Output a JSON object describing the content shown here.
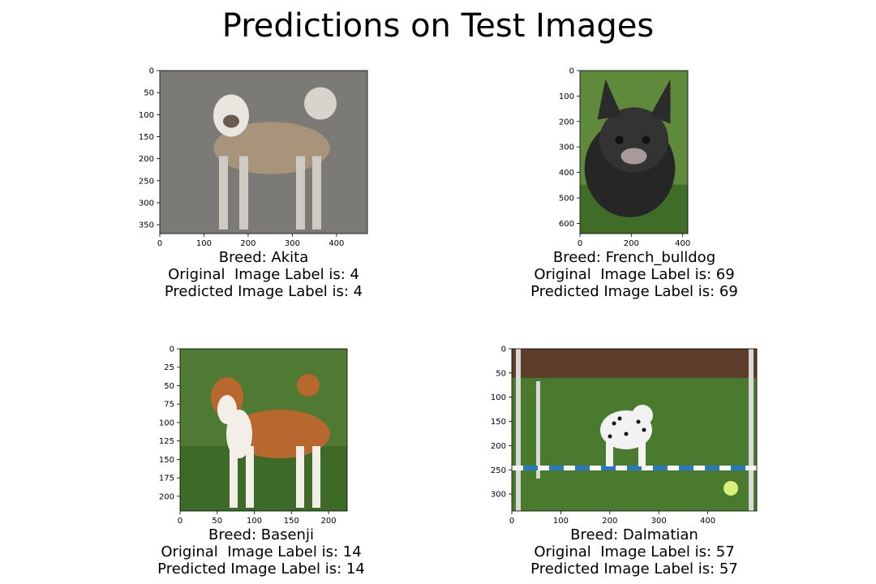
{
  "figure": {
    "title": "Predictions on Test Images"
  },
  "chart_data": [
    {
      "type": "image",
      "breed": "Akita",
      "caption": [
        "Breed: Akita",
        "Original  Image Label is: 4",
        "Predicted Image Label is: 4"
      ],
      "original_label": 4,
      "predicted_label": 4,
      "xlim": [
        0,
        470
      ],
      "ylim": [
        370,
        0
      ],
      "xticks": [
        0,
        100,
        200,
        300,
        400
      ],
      "yticks": [
        0,
        50,
        100,
        150,
        200,
        250,
        300,
        350
      ],
      "image_colors": {
        "bg": "#7b7a77",
        "dog": "#a8947a",
        "accent": "#e9e6e0"
      }
    },
    {
      "type": "image",
      "breed": "French_bulldog",
      "caption": [
        "Breed: French_bulldog",
        "Original  Image Label is: 69",
        "Predicted Image Label is: 69"
      ],
      "original_label": 69,
      "predicted_label": 69,
      "xlim": [
        0,
        420
      ],
      "ylim": [
        640,
        0
      ],
      "xticks": [
        0,
        200,
        400
      ],
      "yticks": [
        0,
        100,
        200,
        300,
        400,
        500,
        600
      ],
      "image_colors": {
        "bg": "#5f8a3b",
        "dog": "#262626",
        "accent": "#a99a9a"
      }
    },
    {
      "type": "image",
      "breed": "Basenji",
      "caption": [
        "Breed: Basenji",
        "Original  Image Label is: 14",
        "Predicted Image Label is: 14"
      ],
      "original_label": 14,
      "predicted_label": 14,
      "xlim": [
        0,
        225
      ],
      "ylim": [
        220,
        0
      ],
      "xticks": [
        0,
        50,
        100,
        150,
        200
      ],
      "yticks": [
        0,
        25,
        50,
        75,
        100,
        125,
        150,
        175,
        200
      ],
      "image_colors": {
        "bg": "#4f7a34",
        "dog": "#b8672f",
        "accent": "#f3efe8"
      }
    },
    {
      "type": "image",
      "breed": "Dalmatian",
      "caption": [
        "Breed: Dalmatian",
        "Original  Image Label is: 57",
        "Predicted Image Label is: 57"
      ],
      "original_label": 57,
      "predicted_label": 57,
      "xlim": [
        0,
        500
      ],
      "ylim": [
        335,
        0
      ],
      "xticks": [
        0,
        100,
        200,
        300,
        400
      ],
      "yticks": [
        0,
        50,
        100,
        150,
        200,
        250,
        300
      ],
      "image_colors": {
        "bg": "#4a7a2e",
        "dog": "#f2f2f2",
        "accent": "#2a78c0"
      }
    }
  ]
}
